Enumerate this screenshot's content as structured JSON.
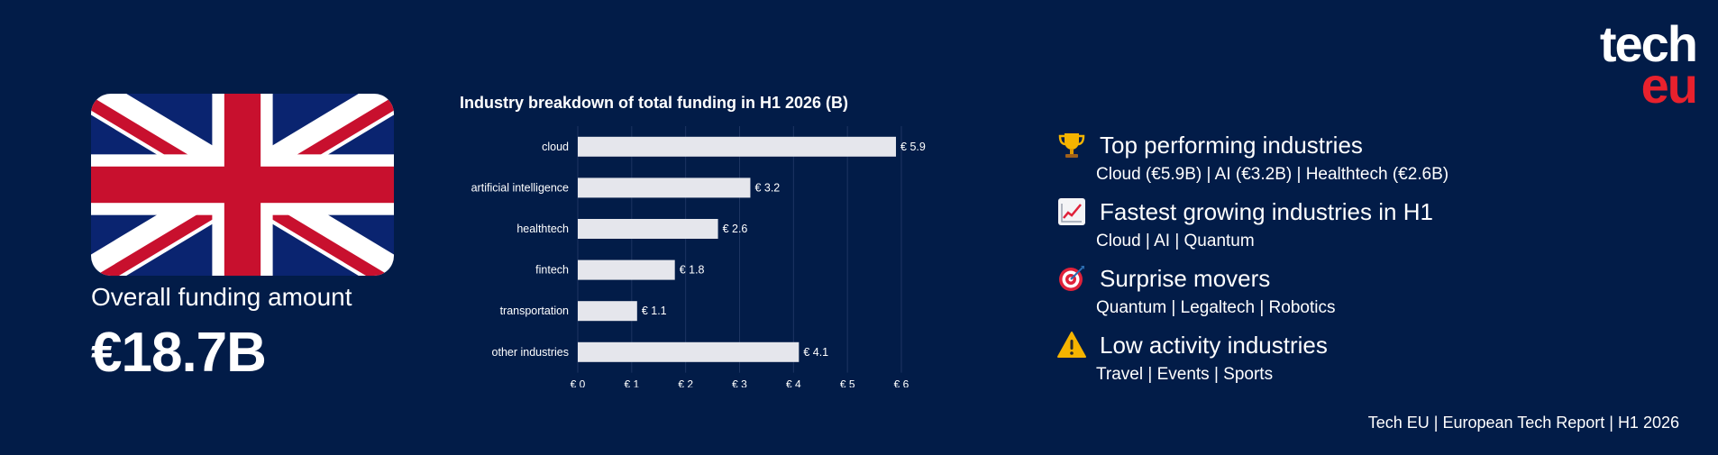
{
  "colors": {
    "background": "#021c48",
    "bar": "#e5e6ec",
    "grid": "#1d3562",
    "flag_blue": "#0a2470",
    "flag_red": "#c8102e",
    "logo_red": "#e8212d"
  },
  "funding": {
    "label": "Overall funding amount",
    "value": "€18.7B"
  },
  "chart_data": {
    "type": "bar",
    "orientation": "horizontal",
    "title": "Industry breakdown of total funding in H1 2026 (B)",
    "categories": [
      "cloud",
      "artificial intelligence",
      "healthtech",
      "fintech",
      "transportation",
      "other industries"
    ],
    "values": [
      5.9,
      3.2,
      2.6,
      1.8,
      1.1,
      4.1
    ],
    "data_labels": [
      "€ 5.9",
      "€ 3.2",
      "€ 2.6",
      "€ 1.8",
      "€ 1.1",
      "€ 4.1"
    ],
    "xlim": [
      0,
      6
    ],
    "x_ticks": [
      0,
      1,
      2,
      3,
      4,
      5,
      6
    ],
    "x_tick_labels": [
      "€ 0",
      "€ 1",
      "€ 2",
      "€ 3",
      "€ 4",
      "€ 5",
      "€ 6"
    ],
    "grid": true,
    "xlabel": "",
    "ylabel": ""
  },
  "industries": [
    {
      "icon": "trophy-icon",
      "title": "Top performing industries",
      "detail": "Cloud (€5.9B) | AI (€3.2B) | Healthtech (€2.6B)"
    },
    {
      "icon": "chart-increasing-icon",
      "title": "Fastest growing industries in H1",
      "detail": "Cloud | AI | Quantum"
    },
    {
      "icon": "target-icon",
      "title": "Surprise movers",
      "detail": "Quantum | Legaltech | Robotics"
    },
    {
      "icon": "warning-icon",
      "title": "Low activity industries",
      "detail": "Travel | Events | Sports"
    }
  ],
  "logo": {
    "line1": "tech",
    "line2": "eu"
  },
  "footer": "Tech EU | European Tech Report | H1 2026"
}
